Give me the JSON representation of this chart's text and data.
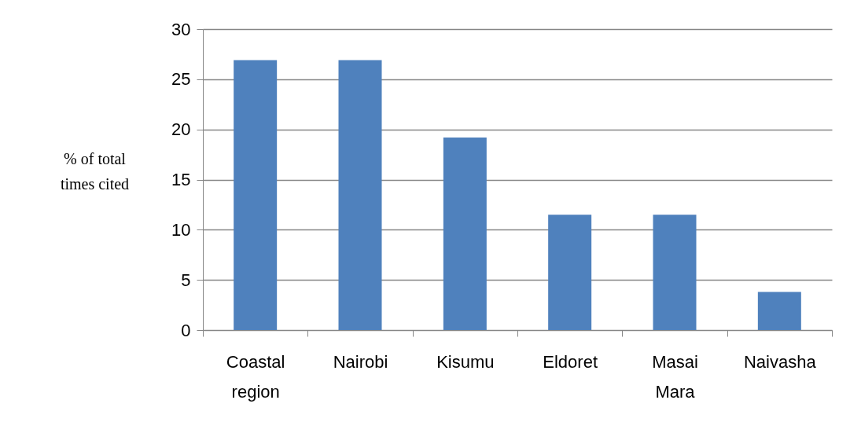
{
  "chart_data": {
    "type": "bar",
    "ylabel": "% of total times cited",
    "categories": [
      "Coastal region",
      "Nairobi",
      "Kisumu",
      "Eldoret",
      "Masai Mara",
      "Naivasha"
    ],
    "values": [
      26.9,
      26.9,
      19.2,
      11.5,
      11.5,
      3.8
    ],
    "color": "#4f81bd",
    "ylim": [
      0,
      30
    ],
    "yticks": [
      0,
      5,
      10,
      15,
      20,
      25,
      30
    ],
    "grid": "y"
  }
}
